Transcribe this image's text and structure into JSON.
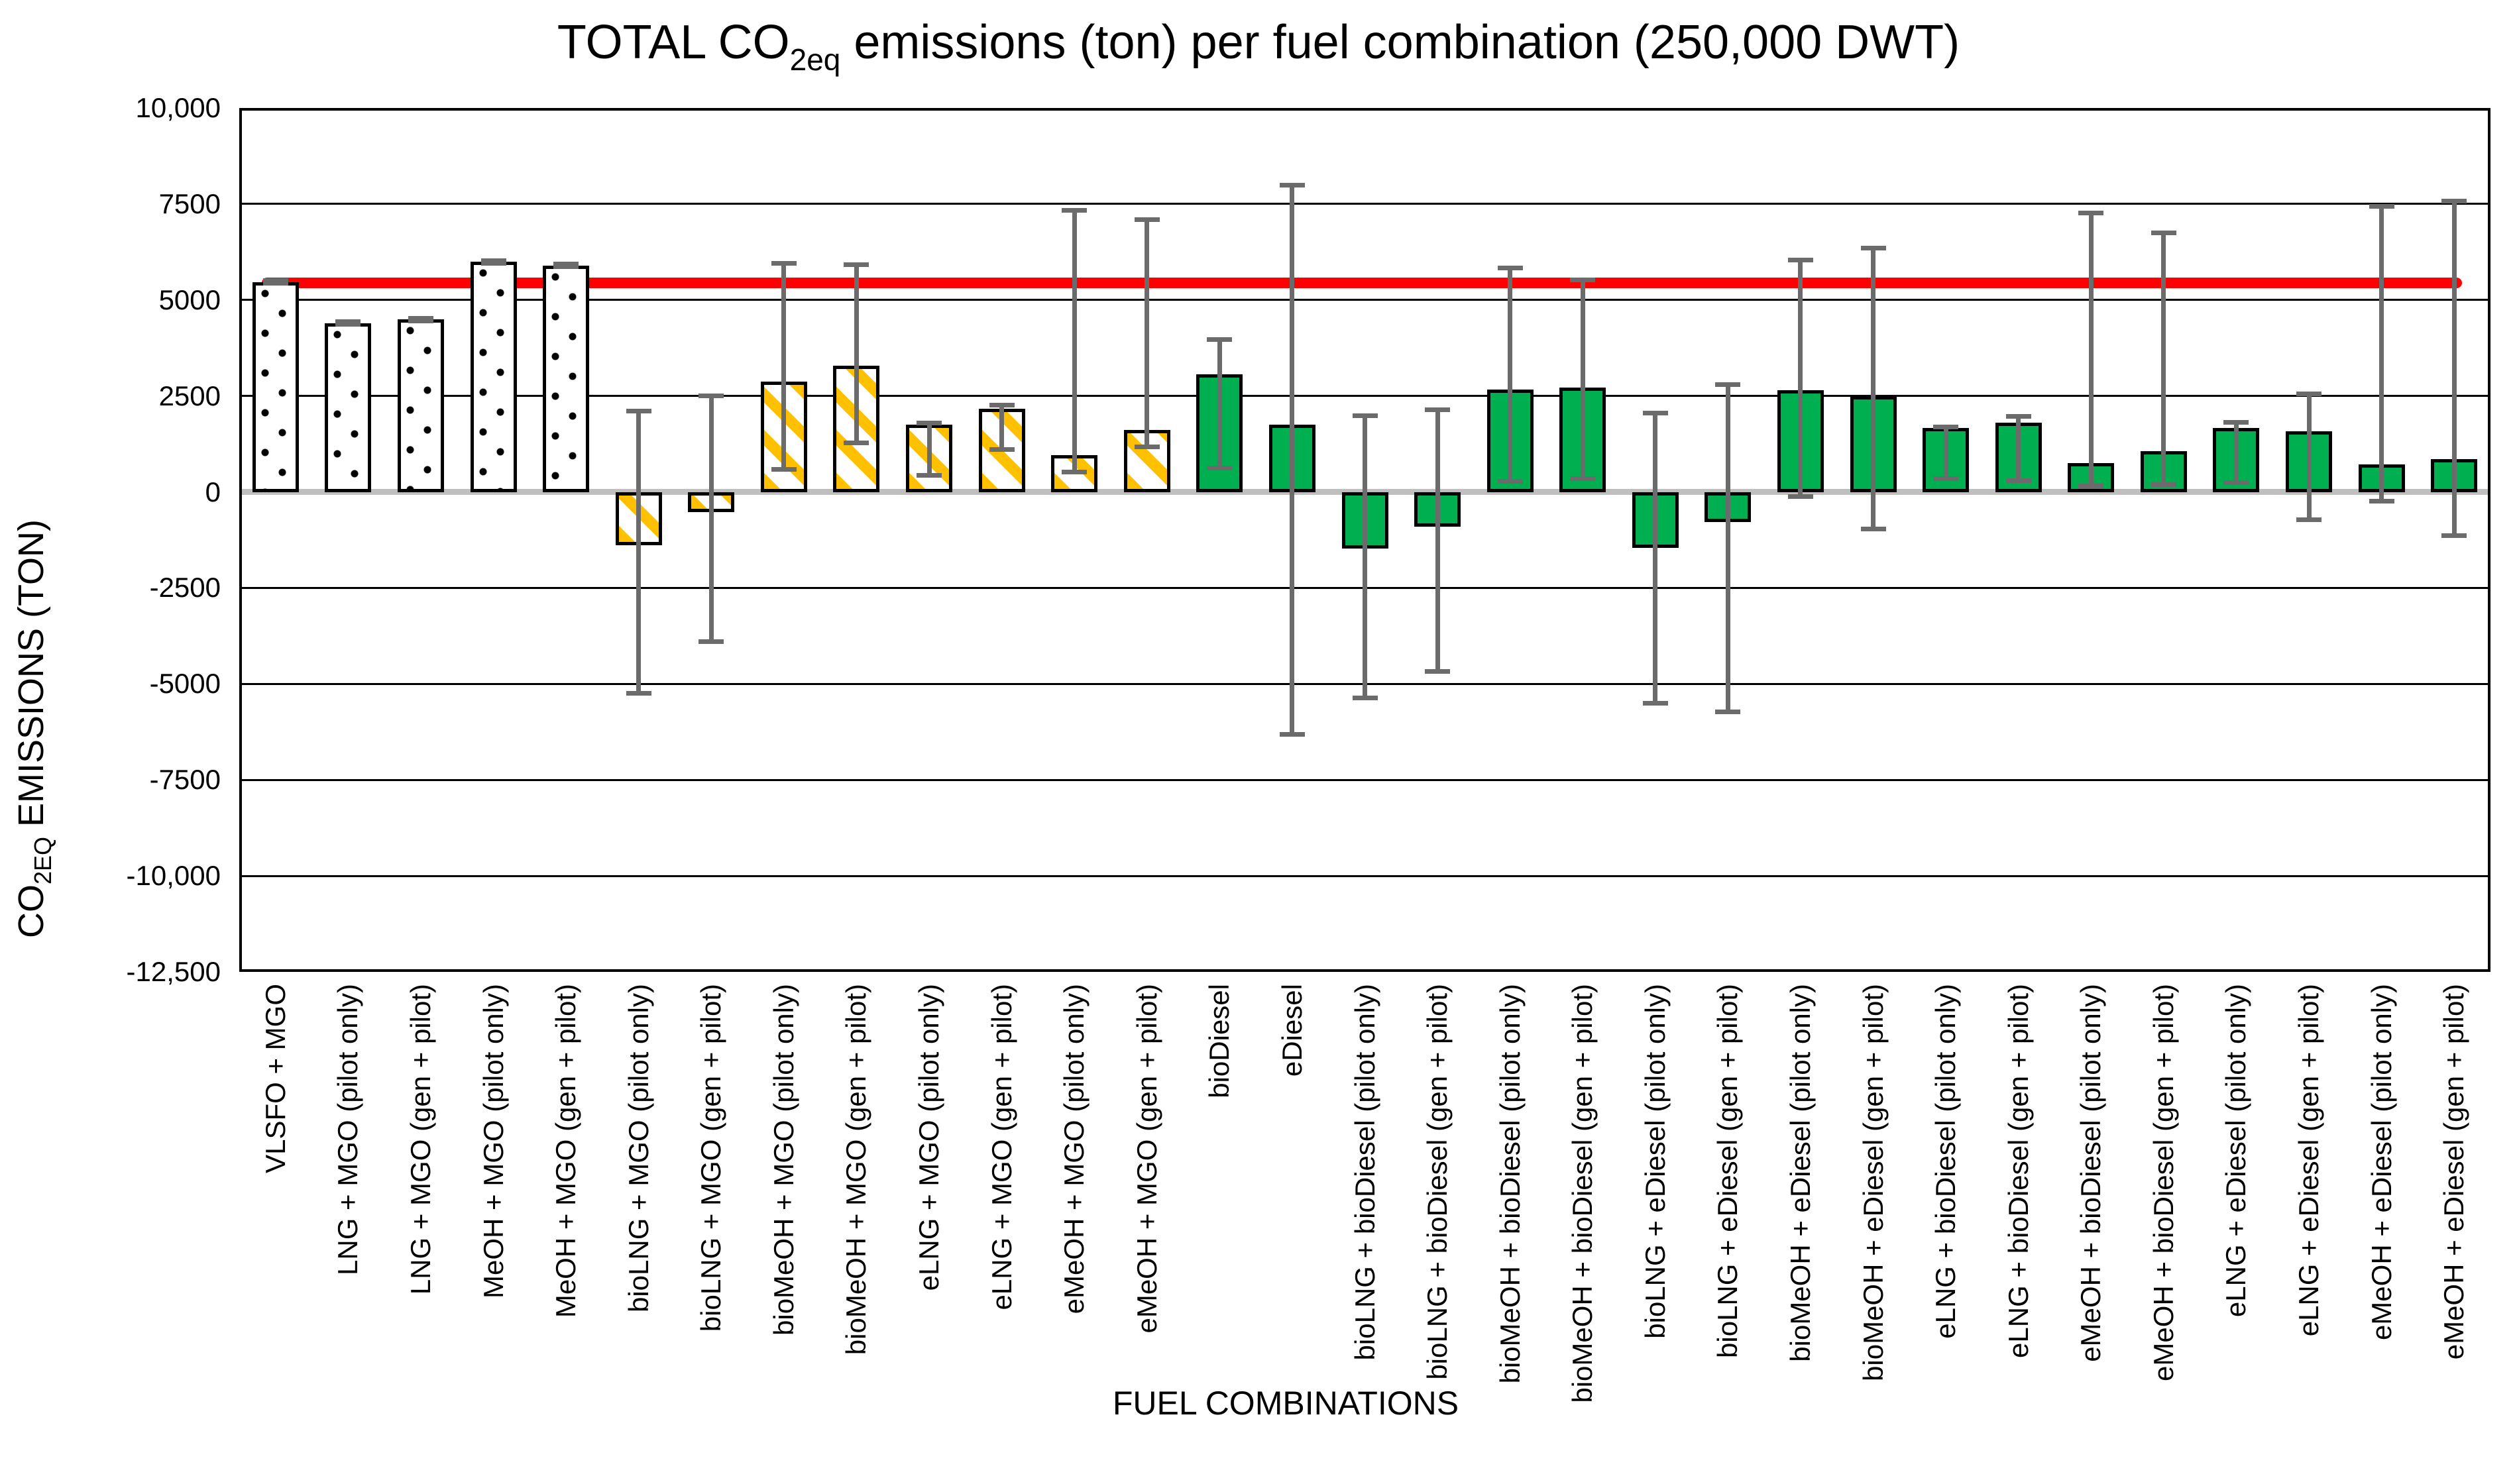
{
  "title": {
    "pre": "TOTAL CO",
    "sub": "2eq",
    "post": " emissions (ton) per fuel combination (250,000 DWT)"
  },
  "y_axis": {
    "title_pre": "CO",
    "title_sub": "2EQ",
    "title_post": " EMISSIONS (TON)",
    "ticks": [
      {
        "value": 10000,
        "label": "10,000"
      },
      {
        "value": 7500,
        "label": "7500"
      },
      {
        "value": 5000,
        "label": "5000"
      },
      {
        "value": 2500,
        "label": "2500"
      },
      {
        "value": 0,
        "label": "0"
      },
      {
        "value": -2500,
        "label": "-2500"
      },
      {
        "value": -5000,
        "label": "-5000"
      },
      {
        "value": -7500,
        "label": "-7500"
      },
      {
        "value": -10000,
        "label": "-10,000"
      },
      {
        "value": -12500,
        "label": "-12,500"
      }
    ]
  },
  "x_axis": {
    "title": "FUEL COMBINATIONS"
  },
  "colors": {
    "green_bar": "#00B050",
    "hatch_yellow": "#FFC000",
    "dotted_bar_fill": "#FFFFFF",
    "bar_border": "#000000",
    "error_bar": "#6B6B6B",
    "zero_line": "#BFBFBF",
    "gridline": "#000000",
    "reference_line": "#FF0000"
  },
  "chart_data": {
    "type": "bar",
    "title": "TOTAL CO2eq emissions (ton) per fuel combination (250,000 DWT)",
    "xlabel": "FUEL COMBINATIONS",
    "ylabel": "CO2EQ EMISSIONS (TON)",
    "ylim": [
      -12500,
      10000
    ],
    "ytick_step": 2500,
    "grid": true,
    "legend_position": "none",
    "reference_line": {
      "value": 5450,
      "color": "#FF0000",
      "description": "red horizontal reference line"
    },
    "bar_styles": {
      "dotted": "white fill with black dot pattern",
      "hatched": "white fill with #FFC000 diagonal stripes",
      "green": "solid #00B050"
    },
    "bars": [
      {
        "label": "VLSFO + MGO",
        "value": 5470,
        "err_low": 5430,
        "err_high": 5510,
        "style": "dotted"
      },
      {
        "label": "LNG + MGO (pilot only)",
        "value": 4400,
        "err_low": 4370,
        "err_high": 4440,
        "style": "dotted"
      },
      {
        "label": "LNG + MGO (gen + pilot)",
        "value": 4490,
        "err_low": 4460,
        "err_high": 4530,
        "style": "dotted"
      },
      {
        "label": "MeOH + MGO (pilot only)",
        "value": 5990,
        "err_low": 5950,
        "err_high": 6030,
        "style": "dotted"
      },
      {
        "label": "MeOH + MGO (gen + pilot)",
        "value": 5900,
        "err_low": 5860,
        "err_high": 5940,
        "style": "dotted"
      },
      {
        "label": "bioLNG + MGO (pilot only)",
        "value": -1390,
        "err_low": -5250,
        "err_high": 2100,
        "style": "hatched"
      },
      {
        "label": "bioLNG + MGO (gen + pilot)",
        "value": -530,
        "err_low": -3900,
        "err_high": 2500,
        "style": "hatched"
      },
      {
        "label": "bioMeOH + MGO (pilot only)",
        "value": 2870,
        "err_low": 590,
        "err_high": 5960,
        "style": "hatched"
      },
      {
        "label": "bioMeOH + MGO (gen + pilot)",
        "value": 3280,
        "err_low": 1270,
        "err_high": 5920,
        "style": "hatched"
      },
      {
        "label": "eLNG + MGO (pilot only)",
        "value": 1750,
        "err_low": 430,
        "err_high": 1800,
        "style": "hatched"
      },
      {
        "label": "eLNG + MGO (gen + pilot)",
        "value": 2160,
        "err_low": 1100,
        "err_high": 2260,
        "style": "hatched"
      },
      {
        "label": "eMeOH + MGO (pilot only)",
        "value": 960,
        "err_low": 520,
        "err_high": 7340,
        "style": "hatched"
      },
      {
        "label": "eMeOH + MGO (gen + pilot)",
        "value": 1610,
        "err_low": 1170,
        "err_high": 7100,
        "style": "hatched"
      },
      {
        "label": "bioDiesel",
        "value": 3070,
        "err_low": 630,
        "err_high": 3970,
        "style": "green"
      },
      {
        "label": "eDiesel",
        "value": 1750,
        "err_low": -6310,
        "err_high": 7990,
        "style": "green"
      },
      {
        "label": "bioLNG + bioDiesel (pilot only)",
        "value": -1480,
        "err_low": -5360,
        "err_high": 1980,
        "style": "green"
      },
      {
        "label": "bioLNG + bioDiesel (gen + pilot)",
        "value": -910,
        "err_low": -4670,
        "err_high": 2140,
        "style": "green"
      },
      {
        "label": "bioMeOH + bioDiesel (pilot only)",
        "value": 2670,
        "err_low": 280,
        "err_high": 5830,
        "style": "green"
      },
      {
        "label": "bioMeOH + bioDiesel (gen + pilot)",
        "value": 2710,
        "err_low": 340,
        "err_high": 5520,
        "style": "green"
      },
      {
        "label": "bioLNG + eDiesel (pilot only)",
        "value": -1460,
        "err_low": -5500,
        "err_high": 2060,
        "style": "green"
      },
      {
        "label": "bioLNG + eDiesel (gen + pilot)",
        "value": -780,
        "err_low": -5720,
        "err_high": 2800,
        "style": "green"
      },
      {
        "label": "bioMeOH + eDiesel (pilot only)",
        "value": 2650,
        "err_low": -120,
        "err_high": 6040,
        "style": "green"
      },
      {
        "label": "bioMeOH + eDiesel (gen + pilot)",
        "value": 2490,
        "err_low": -970,
        "err_high": 6350,
        "style": "green"
      },
      {
        "label": "eLNG + bioDiesel (pilot only)",
        "value": 1670,
        "err_low": 340,
        "err_high": 1700,
        "style": "green"
      },
      {
        "label": "eLNG + bioDiesel (gen + pilot)",
        "value": 1810,
        "err_low": 300,
        "err_high": 1960,
        "style": "green"
      },
      {
        "label": "eMeOH + bioDiesel (pilot only)",
        "value": 760,
        "err_low": 160,
        "err_high": 7270,
        "style": "green"
      },
      {
        "label": "eMeOH + bioDiesel (gen + pilot)",
        "value": 1060,
        "err_low": 190,
        "err_high": 6750,
        "style": "green"
      },
      {
        "label": "eLNG + eDiesel (pilot only)",
        "value": 1670,
        "err_low": 240,
        "err_high": 1810,
        "style": "green"
      },
      {
        "label": "eLNG + eDiesel (gen + pilot)",
        "value": 1580,
        "err_low": -720,
        "err_high": 2550,
        "style": "green"
      },
      {
        "label": "eMeOH + eDiesel (pilot only)",
        "value": 720,
        "err_low": -240,
        "err_high": 7430,
        "style": "green"
      },
      {
        "label": "eMeOH + eDiesel (gen + pilot)",
        "value": 850,
        "err_low": -1140,
        "err_high": 7570,
        "style": "green"
      }
    ]
  }
}
